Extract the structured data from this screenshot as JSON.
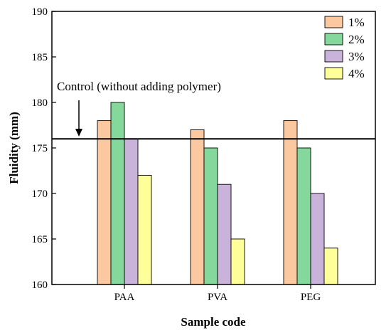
{
  "chart_data": {
    "type": "bar",
    "title": "",
    "xlabel": "Sample code",
    "ylabel": "Fluidity (mm)",
    "categories": [
      "PAA",
      "PVA",
      "PEG"
    ],
    "series": [
      {
        "name": "1%",
        "values": [
          178,
          177,
          178
        ],
        "color": "#fbc8a0"
      },
      {
        "name": "2%",
        "values": [
          180,
          175,
          175
        ],
        "color": "#85d89c"
      },
      {
        "name": "3%",
        "values": [
          176,
          171,
          170
        ],
        "color": "#c9b3da"
      },
      {
        "name": "4%",
        "values": [
          172,
          165,
          164
        ],
        "color": "#ffff99"
      }
    ],
    "ylim": [
      160,
      190
    ],
    "yticks": [
      160,
      165,
      170,
      175,
      180,
      185,
      190
    ],
    "reference_line": {
      "value": 176,
      "label": "Control (without adding polymer)"
    },
    "legend": "top-right",
    "grid": false
  }
}
